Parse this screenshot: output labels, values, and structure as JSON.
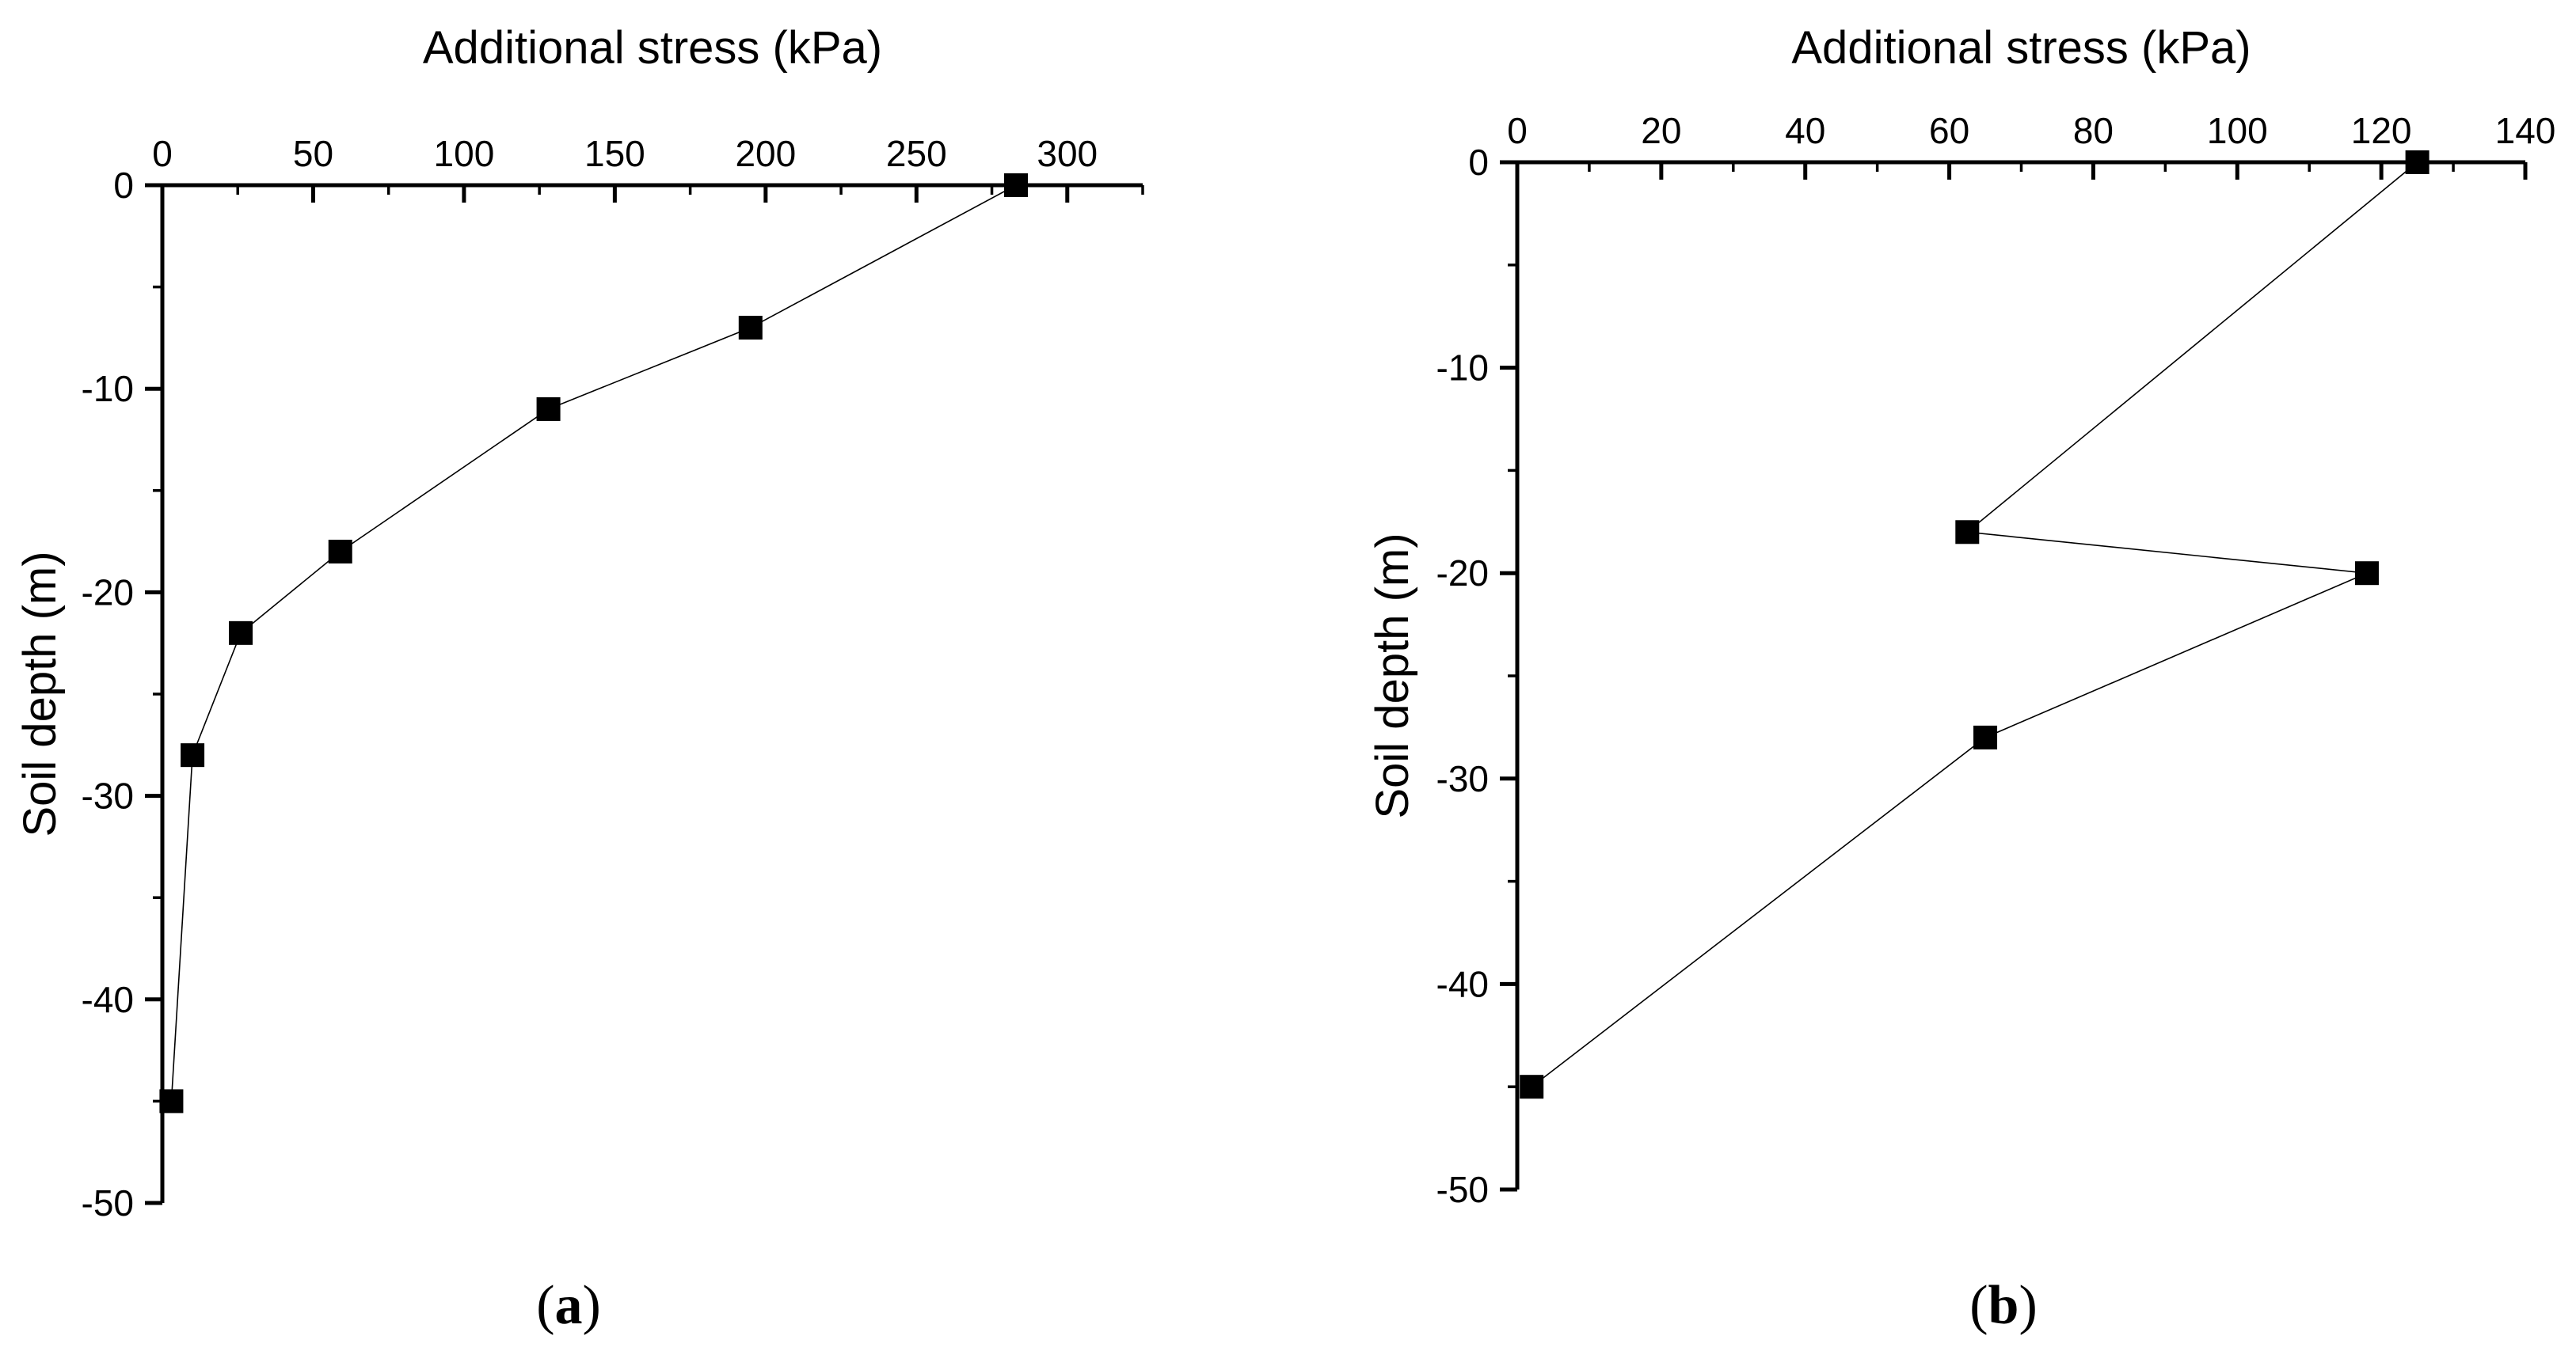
{
  "chart_data": [
    {
      "panel_label": "a",
      "type": "line",
      "title": "",
      "xlabel": "Additional stress (kPa)",
      "ylabel": "Soil depth (m)",
      "xlim": [
        0,
        325
      ],
      "ylim": [
        -50,
        0
      ],
      "x_ticks": [
        0,
        50,
        100,
        150,
        200,
        250,
        300
      ],
      "y_ticks": [
        0,
        -10,
        -20,
        -30,
        -40,
        -50
      ],
      "x_tick_labels": [
        "0",
        "50",
        "100",
        "150",
        "200",
        "250",
        "300"
      ],
      "y_tick_labels": [
        "0",
        "-10",
        "-20",
        "-30",
        "-40",
        "-50"
      ],
      "x_axis_position": "top",
      "grid": false,
      "series": [
        {
          "name": "",
          "marker": "square",
          "points": [
            {
              "x": 283,
              "y": 0
            },
            {
              "x": 195,
              "y": -7
            },
            {
              "x": 128,
              "y": -11
            },
            {
              "x": 59,
              "y": -18
            },
            {
              "x": 26,
              "y": -22
            },
            {
              "x": 10,
              "y": -28
            },
            {
              "x": 3,
              "y": -45
            }
          ]
        }
      ]
    },
    {
      "panel_label": "b",
      "type": "line",
      "title": "",
      "xlabel": "Additional stress (kPa)",
      "ylabel": "Soil depth (m)",
      "xlim": [
        0,
        140
      ],
      "ylim": [
        -50,
        0
      ],
      "x_ticks": [
        0,
        20,
        40,
        60,
        80,
        100,
        120,
        140
      ],
      "y_ticks": [
        0,
        -10,
        -20,
        -30,
        -40,
        -50
      ],
      "x_tick_labels": [
        "0",
        "20",
        "40",
        "60",
        "80",
        "100",
        "120",
        "140"
      ],
      "y_tick_labels": [
        "0",
        "-10",
        "-20",
        "-30",
        "-40",
        "-50"
      ],
      "x_axis_position": "top",
      "grid": false,
      "series": [
        {
          "name": "",
          "marker": "square",
          "points": [
            {
              "x": 125,
              "y": 0
            },
            {
              "x": 62.5,
              "y": -18
            },
            {
              "x": 118,
              "y": -20
            },
            {
              "x": 65,
              "y": -28
            },
            {
              "x": 2,
              "y": -45
            }
          ]
        }
      ]
    }
  ]
}
